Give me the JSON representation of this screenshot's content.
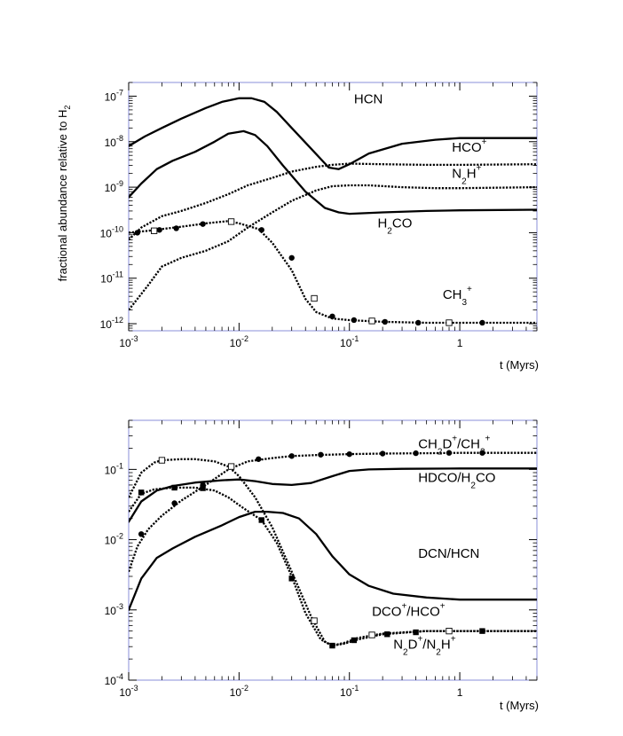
{
  "figure": {
    "ylabel": "fractional abundance relative to H",
    "ylabel_sub": "2"
  },
  "chart_data": [
    {
      "type": "line",
      "xscale": "log",
      "yscale": "log",
      "xlim": [
        0.001,
        5
      ],
      "ylim": [
        7e-13,
        2e-07
      ],
      "xlabel": "t (Myrs)",
      "xticks": [
        {
          "base": "10",
          "exp": "-3"
        },
        {
          "base": "10",
          "exp": "-2"
        },
        {
          "base": "10",
          "exp": "-1"
        },
        {
          "base": "1",
          "exp": ""
        }
      ],
      "yticks": [
        {
          "base": "10",
          "exp": "-12"
        },
        {
          "base": "10",
          "exp": "-11"
        },
        {
          "base": "10",
          "exp": "-10"
        },
        {
          "base": "10",
          "exp": "-9"
        },
        {
          "base": "10",
          "exp": "-8"
        },
        {
          "base": "10",
          "exp": "-7"
        }
      ],
      "series": [
        {
          "name": "HCN",
          "style": "solid",
          "label_parts": [
            [
              "HCN",
              ""
            ]
          ],
          "x": [
            0.001,
            0.0014,
            0.002,
            0.003,
            0.005,
            0.007,
            0.01,
            0.013,
            0.017,
            0.022,
            0.03,
            0.045,
            0.065,
            0.08,
            0.1,
            0.15,
            0.3,
            0.6,
            1.0,
            2.0,
            5.0
          ],
          "y": [
            8e-09,
            1.3e-08,
            2e-08,
            3.2e-08,
            5.5e-08,
            7.5e-08,
            9e-08,
            9e-08,
            7.5e-08,
            4.5e-08,
            2e-08,
            7e-09,
            2.7e-09,
            2.5e-09,
            3.2e-09,
            5.5e-09,
            9e-09,
            1.1e-08,
            1.2e-08,
            1.2e-08,
            1.2e-08
          ]
        },
        {
          "name": "H2CO",
          "style": "solid",
          "label_parts": [
            [
              "H",
              ""
            ],
            [
              "2",
              "sub"
            ],
            [
              "CO",
              ""
            ]
          ],
          "x": [
            0.001,
            0.0013,
            0.0018,
            0.0025,
            0.004,
            0.006,
            0.008,
            0.011,
            0.014,
            0.018,
            0.025,
            0.04,
            0.06,
            0.08,
            0.1,
            0.2,
            0.5,
            1.0,
            5.0
          ],
          "y": [
            6e-10,
            1.2e-09,
            2.5e-09,
            3.8e-09,
            6e-09,
            1e-08,
            1.5e-08,
            1.7e-08,
            1.4e-08,
            8e-09,
            3e-09,
            8e-10,
            3.5e-10,
            2.8e-10,
            2.6e-10,
            2.8e-10,
            3e-10,
            3.1e-10,
            3.2e-10
          ]
        },
        {
          "name": "HCO+",
          "style": "dotted",
          "label_parts": [
            [
              "HCO",
              ""
            ],
            [
              "+",
              "sup"
            ]
          ],
          "x": [
            0.001,
            0.0013,
            0.002,
            0.003,
            0.005,
            0.008,
            0.012,
            0.02,
            0.03,
            0.05,
            0.07,
            0.1,
            0.2,
            0.5,
            1.0,
            5.0
          ],
          "y": [
            7e-11,
            1.3e-10,
            2.3e-10,
            3e-10,
            4.5e-10,
            7e-10,
            1.1e-09,
            1.6e-09,
            2.2e-09,
            2.8e-09,
            3.1e-09,
            3.3e-09,
            3.2e-09,
            3.1e-09,
            3.1e-09,
            3.2e-09
          ]
        },
        {
          "name": "N2H+",
          "style": "dotted",
          "label_parts": [
            [
              "N",
              ""
            ],
            [
              "2",
              "sub"
            ],
            [
              "H",
              ""
            ],
            [
              "+",
              "sup"
            ]
          ],
          "x": [
            0.001,
            0.0015,
            0.002,
            0.003,
            0.005,
            0.008,
            0.012,
            0.02,
            0.03,
            0.05,
            0.07,
            0.1,
            0.15,
            0.3,
            0.6,
            1.0,
            5.0
          ],
          "y": [
            2e-12,
            7e-12,
            1.8e-11,
            2.8e-11,
            4e-11,
            6.5e-11,
            1.3e-10,
            2.8e-10,
            5e-10,
            8.5e-10,
            1.05e-09,
            1.1e-09,
            1.1e-09,
            1e-09,
            9.5e-10,
            9.5e-10,
            1e-09
          ]
        },
        {
          "name": "CH3+",
          "style": "dotted",
          "label_parts": [
            [
              "CH",
              ""
            ],
            [
              "3",
              "sub"
            ],
            [
              "+",
              "sup"
            ]
          ],
          "x": [
            0.001,
            0.0015,
            0.002,
            0.003,
            0.005,
            0.008,
            0.01,
            0.015,
            0.02,
            0.03,
            0.04,
            0.05,
            0.07,
            0.1,
            0.2,
            0.5,
            1.0,
            5.0
          ],
          "y": [
            1e-10,
            1.1e-10,
            1.2e-10,
            1.35e-10,
            1.6e-10,
            1.8e-10,
            1.6e-10,
            1.2e-10,
            6e-11,
            1.5e-11,
            3.5e-12,
            1.8e-12,
            1.3e-12,
            1.2e-12,
            1.1e-12,
            1.05e-12,
            1.05e-12,
            1.05e-12
          ]
        }
      ],
      "markers": [
        {
          "type": "filled-circle",
          "x": [
            0.0012,
            0.0019,
            0.0027,
            0.0047,
            0.0085,
            0.016,
            0.03,
            0.07,
            0.11,
            0.21,
            0.42,
            1.6
          ],
          "y": [
            1e-10,
            1.15e-10,
            1.25e-10,
            1.55e-10,
            1.75e-10,
            1.15e-10,
            2.8e-11,
            1.45e-12,
            1.2e-12,
            1.1e-12,
            1.05e-12,
            1.05e-12
          ]
        },
        {
          "type": "open-square",
          "x": [
            0.0017,
            0.0085,
            0.048,
            0.16,
            0.8
          ],
          "y": [
            1.1e-10,
            1.75e-10,
            3.6e-12,
            1.15e-12,
            1.05e-12
          ]
        }
      ],
      "labels": [
        {
          "series": "HCN",
          "x": 0.11,
          "y": 7e-08
        },
        {
          "series": "HCO+",
          "x": 0.85,
          "y": 6e-09
        },
        {
          "series": "N2H+",
          "x": 0.85,
          "y": 1.6e-09
        },
        {
          "series": "H2CO",
          "x": 0.18,
          "y": 1.3e-10
        },
        {
          "series": "CH3+",
          "x": 0.7,
          "y": 3.5e-12
        }
      ]
    },
    {
      "type": "line",
      "xscale": "log",
      "yscale": "log",
      "xlim": [
        0.001,
        5
      ],
      "ylim": [
        0.0001,
        0.5
      ],
      "xlabel": "t (Myrs)",
      "xticks": [
        {
          "base": "10",
          "exp": "-3"
        },
        {
          "base": "10",
          "exp": "-2"
        },
        {
          "base": "10",
          "exp": "-1"
        },
        {
          "base": "1",
          "exp": ""
        }
      ],
      "yticks": [
        {
          "base": "10",
          "exp": "-4"
        },
        {
          "base": "10",
          "exp": "-3"
        },
        {
          "base": "10",
          "exp": "-2"
        },
        {
          "base": "10",
          "exp": "-1"
        }
      ],
      "series": [
        {
          "name": "CH2D+/CH3+",
          "style": "dotted",
          "label_parts": [
            [
              "CH",
              ""
            ],
            [
              "2",
              "sub"
            ],
            [
              "D",
              ""
            ],
            [
              "+",
              "sup"
            ],
            [
              "/CH",
              ""
            ],
            [
              "3",
              "sub"
            ],
            [
              "+",
              "sup"
            ]
          ],
          "x": [
            0.001,
            0.0012,
            0.0015,
            0.002,
            0.003,
            0.005,
            0.008,
            0.012,
            0.02,
            0.03,
            0.05,
            0.1,
            0.2,
            0.5,
            1.0,
            5.0
          ],
          "y": [
            0.0035,
            0.008,
            0.014,
            0.022,
            0.036,
            0.06,
            0.1,
            0.13,
            0.145,
            0.155,
            0.16,
            0.165,
            0.168,
            0.17,
            0.172,
            0.172
          ]
        },
        {
          "name": "HDCO/H2CO",
          "style": "solid",
          "label_parts": [
            [
              "HDCO/H",
              ""
            ],
            [
              "2",
              "sub"
            ],
            [
              "CO",
              ""
            ]
          ],
          "x": [
            0.001,
            0.0013,
            0.0018,
            0.0025,
            0.004,
            0.007,
            0.01,
            0.014,
            0.02,
            0.03,
            0.045,
            0.07,
            0.1,
            0.15,
            0.3,
            1.0,
            5.0
          ],
          "y": [
            0.018,
            0.035,
            0.05,
            0.058,
            0.065,
            0.07,
            0.072,
            0.068,
            0.062,
            0.06,
            0.064,
            0.08,
            0.095,
            0.1,
            0.102,
            0.103,
            0.103
          ]
        },
        {
          "name": "DCN/HCN",
          "style": "solid",
          "label_parts": [
            [
              "DCN/HCN",
              ""
            ]
          ],
          "x": [
            0.001,
            0.0013,
            0.0018,
            0.0025,
            0.004,
            0.007,
            0.01,
            0.014,
            0.018,
            0.025,
            0.035,
            0.05,
            0.07,
            0.1,
            0.15,
            0.25,
            0.5,
            1.0,
            2.0,
            5.0
          ],
          "y": [
            0.001,
            0.0028,
            0.0055,
            0.0075,
            0.011,
            0.016,
            0.021,
            0.025,
            0.025,
            0.024,
            0.02,
            0.012,
            0.0058,
            0.0032,
            0.0022,
            0.0017,
            0.0015,
            0.0014,
            0.0014,
            0.0014
          ]
        },
        {
          "name": "DCO+/HCO+",
          "style": "dotted",
          "label_parts": [
            [
              "DCO",
              ""
            ],
            [
              "+",
              "sup"
            ],
            [
              "/HCO",
              ""
            ],
            [
              "+",
              "sup"
            ]
          ],
          "x": [
            0.001,
            0.0013,
            0.0017,
            0.002,
            0.003,
            0.004,
            0.006,
            0.008,
            0.01,
            0.014,
            0.02,
            0.03,
            0.045,
            0.06,
            0.07,
            0.09,
            0.12,
            0.2,
            0.5,
            1.0,
            5.0
          ],
          "y": [
            0.04,
            0.09,
            0.125,
            0.135,
            0.14,
            0.14,
            0.13,
            0.11,
            0.08,
            0.04,
            0.015,
            0.0035,
            0.0008,
            0.00035,
            0.00031,
            0.00033,
            0.00038,
            0.00045,
            0.0005,
            0.0005,
            0.0005
          ]
        },
        {
          "name": "N2D+/N2H+",
          "style": "dotted",
          "label_parts": [
            [
              "N",
              ""
            ],
            [
              "2",
              "sub"
            ],
            [
              "D",
              ""
            ],
            [
              "+",
              "sup"
            ],
            [
              "/N",
              ""
            ],
            [
              "2",
              "sub"
            ],
            [
              "H",
              ""
            ],
            [
              "+",
              "sup"
            ]
          ],
          "x": [
            0.001,
            0.0013,
            0.0017,
            0.0025,
            0.004,
            0.006,
            0.008,
            0.011,
            0.016,
            0.022,
            0.03,
            0.04,
            0.055,
            0.07,
            0.09,
            0.12,
            0.2,
            0.5,
            1.0,
            5.0
          ],
          "y": [
            0.025,
            0.045,
            0.052,
            0.055,
            0.055,
            0.05,
            0.04,
            0.028,
            0.019,
            0.009,
            0.003,
            0.0009,
            0.00038,
            0.00031,
            0.00034,
            0.0004,
            0.00046,
            0.0005,
            0.0005,
            0.0005
          ]
        }
      ],
      "markers": [
        {
          "type": "filled-circle",
          "x": [
            0.0013,
            0.0026,
            0.0047,
            0.015,
            0.03,
            0.055,
            0.1,
            0.2,
            0.4,
            0.8,
            1.6
          ],
          "y": [
            0.012,
            0.033,
            0.06,
            0.14,
            0.155,
            0.162,
            0.165,
            0.168,
            0.17,
            0.172,
            0.172
          ]
        },
        {
          "type": "filled-square",
          "x": [
            0.0013,
            0.0026,
            0.0047,
            0.016,
            0.03,
            0.07,
            0.11,
            0.22,
            0.4,
            1.6
          ],
          "y": [
            0.047,
            0.055,
            0.054,
            0.019,
            0.0028,
            0.00031,
            0.00037,
            0.00045,
            0.00048,
            0.0005
          ]
        },
        {
          "type": "open-square",
          "x": [
            0.002,
            0.0085,
            0.048,
            0.16,
            0.8
          ],
          "y": [
            0.135,
            0.11,
            0.0007,
            0.00044,
            0.0005
          ]
        }
      ],
      "labels": [
        {
          "series": "CH2D+/CH3+",
          "x": 0.42,
          "y": 0.2
        },
        {
          "series": "HDCO/H2CO",
          "x": 0.42,
          "y": 0.066
        },
        {
          "series": "DCN/HCN",
          "x": 0.42,
          "y": 0.0055
        },
        {
          "series": "DCO+/HCO+",
          "x": 0.16,
          "y": 0.00082
        },
        {
          "series": "N2D+/N2H+",
          "x": 0.25,
          "y": 0.00028
        }
      ]
    }
  ]
}
